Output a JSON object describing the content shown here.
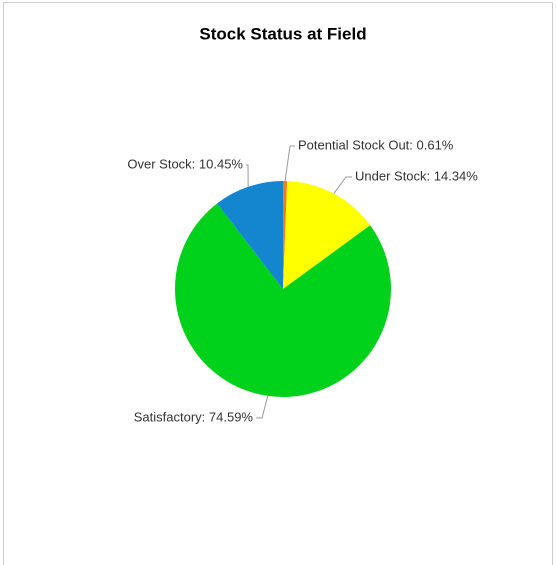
{
  "chart_data": {
    "type": "pie",
    "title": "Stock Status at Field",
    "values": [
      0.61,
      14.34,
      74.59,
      10.45
    ],
    "value_labels": [
      "Potential Stock Out: 0.61%",
      "Under Stock: 14.34%",
      "Satisfactory: 74.59%",
      "Over Stock: 10.45%"
    ],
    "colors": [
      "#f47a1f",
      "#ffff00",
      "#00d11a",
      "#1486cf"
    ]
  }
}
